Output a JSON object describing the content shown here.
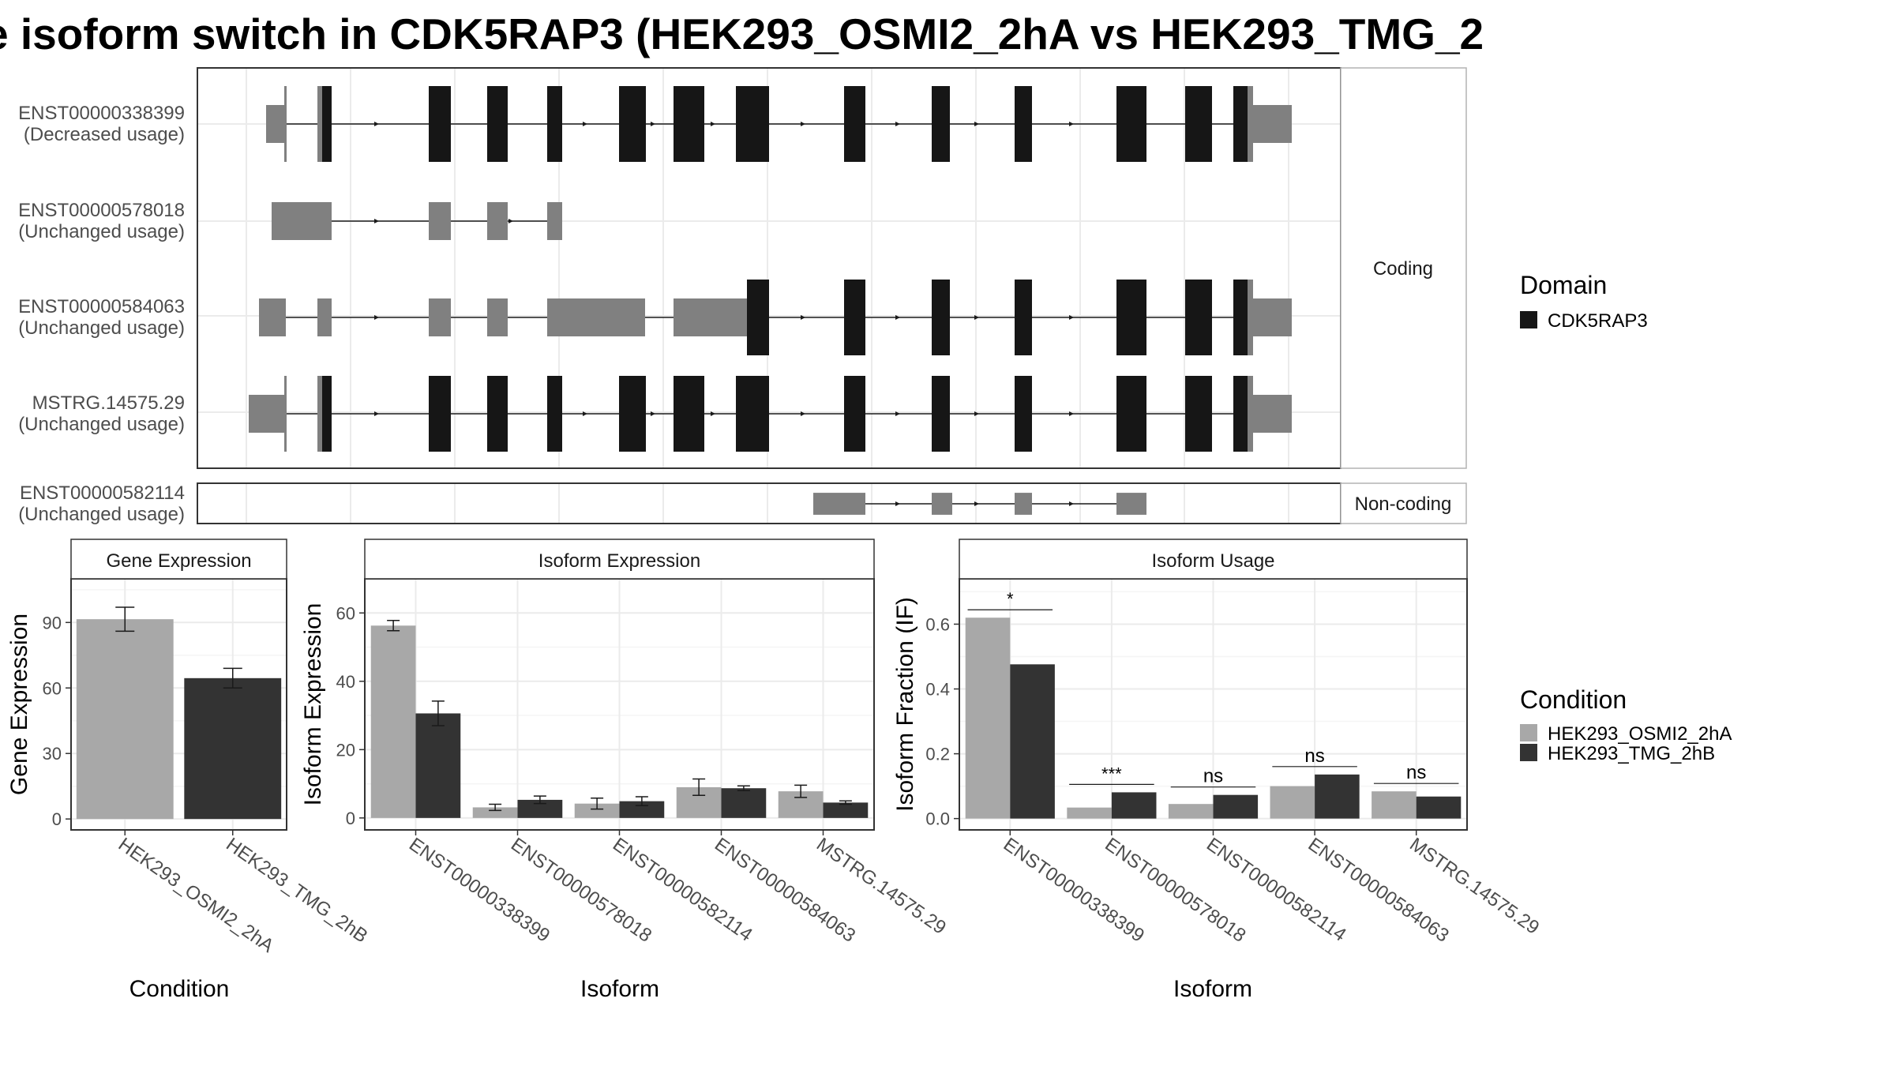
{
  "title": "e isoform switch in CDK5RAP3 (HEK293_OSMI2_2hA vs HEK293_TMG_2",
  "colors": {
    "exon_coding": "#161616",
    "exon_noncoding": "#808080",
    "cond_a": "#a8a8a8",
    "cond_b": "#333333",
    "panel_border": "#333333",
    "strip_border": "#b3b3b3",
    "grid_major": "#ebebeb",
    "grid_minor": "#f5f5f5",
    "axis_text": "#4d4d4d"
  },
  "isoform_panel": {
    "coding_strip": "Coding",
    "noncoding_strip": "Non-coding",
    "isoforms": [
      {
        "id": "ENST00000338399",
        "usage": "(Decreased usage)",
        "group": "coding"
      },
      {
        "id": "ENST00000578018",
        "usage": "(Unchanged usage)",
        "group": "coding"
      },
      {
        "id": "ENST00000584063",
        "usage": "(Unchanged usage)",
        "group": "coding"
      },
      {
        "id": "MSTRG.14575.29",
        "usage": "(Unchanged usage)",
        "group": "coding"
      },
      {
        "id": "ENST00000582114",
        "usage": "(Unchanged usage)",
        "group": "noncoding"
      }
    ]
  },
  "legends": {
    "domain": {
      "title": "Domain",
      "items": [
        {
          "label": "CDK5RAP3",
          "color": "#161616"
        }
      ]
    },
    "condition": {
      "title": "Condition",
      "items": [
        {
          "label": "HEK293_OSMI2_2hA",
          "color": "#a8a8a8"
        },
        {
          "label": "HEK293_TMG_2hB",
          "color": "#333333"
        }
      ]
    }
  },
  "chart_data": [
    {
      "type": "bar",
      "panel": "Gene Expression",
      "xlabel": "Condition",
      "ylabel": "Gene Expression",
      "categories": [
        "HEK293_OSMI2_2hA",
        "HEK293_TMG_2hB"
      ],
      "values": [
        91.5,
        64.5
      ],
      "errors": [
        [
          86,
          97
        ],
        [
          60,
          69
        ]
      ],
      "yticks": [
        0,
        30,
        60,
        90
      ],
      "ylim": [
        -5,
        110
      ]
    },
    {
      "type": "bar",
      "panel": "Isoform Expression",
      "xlabel": "Isoform",
      "ylabel": "Isoform Expression",
      "categories": [
        "ENST00000338399",
        "ENST00000578018",
        "ENST00000582114",
        "ENST00000584063",
        "MSTRG.14575.29"
      ],
      "series": [
        {
          "name": "HEK293_OSMI2_2hA",
          "values": [
            56.3,
            3.1,
            4.2,
            9.0,
            7.8
          ],
          "errors": [
            [
              54.8,
              57.8
            ],
            [
              2.2,
              4.0
            ],
            [
              2.6,
              5.8
            ],
            [
              6.6,
              11.4
            ],
            [
              6.0,
              9.6
            ]
          ]
        },
        {
          "name": "HEK293_TMG_2hB",
          "values": [
            30.6,
            5.3,
            4.9,
            8.7,
            4.5
          ],
          "errors": [
            [
              27.0,
              34.2
            ],
            [
              4.2,
              6.4
            ],
            [
              3.6,
              6.2
            ],
            [
              8.0,
              9.4
            ],
            [
              4.0,
              5.0
            ]
          ]
        }
      ],
      "yticks": [
        0,
        20,
        40,
        60
      ],
      "ylim": [
        -3.5,
        70
      ]
    },
    {
      "type": "bar",
      "panel": "Isoform Usage",
      "xlabel": "Isoform",
      "ylabel": "Isoform Fraction (IF)",
      "categories": [
        "ENST00000338399",
        "ENST00000578018",
        "ENST00000582114",
        "ENST00000584063",
        "MSTRG.14575.29"
      ],
      "series": [
        {
          "name": "HEK293_OSMI2_2hA",
          "values": [
            0.62,
            0.034,
            0.045,
            0.1,
            0.084
          ]
        },
        {
          "name": "HEK293_TMG_2hB",
          "values": [
            0.476,
            0.081,
            0.073,
            0.136,
            0.068
          ]
        }
      ],
      "significance": [
        "*",
        "***",
        "ns",
        "ns",
        "ns"
      ],
      "yticks": [
        0.0,
        0.2,
        0.4,
        0.6
      ],
      "ylim": [
        -0.035,
        0.74
      ]
    }
  ]
}
